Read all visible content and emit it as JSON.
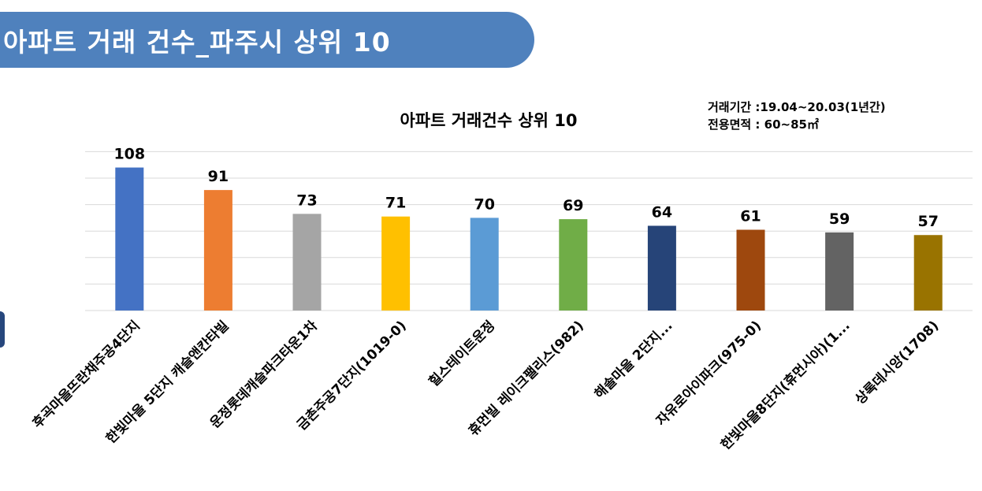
{
  "header": {
    "title": "아파트 거래 건수_파주시 상위 10"
  },
  "notes": {
    "period": "거래기간 :19.04~20.03(1년간)",
    "area": "전용면적 : 60~85㎡"
  },
  "colors": {
    "banner": "#4f81bd",
    "gridline": "#d9d9d9"
  },
  "chart_data": {
    "type": "bar",
    "title": "아파트 거래건수 상위 10",
    "xlabel": "",
    "ylabel": "",
    "ylim": [
      0,
      120
    ],
    "grid": true,
    "legend": "none",
    "categories": [
      "후곡마을뜨란채주공4단지",
      "한빛마을 5단지 캐슬앤칸타빌",
      "운정롯데캐슬파크타운1차",
      "금촌주공7단지(1019-0)",
      "힐스테이트운정",
      "휴먼빌 레이크팰리스(982)",
      "해솔마을 2단지...",
      "자유로아이파크(975-0)",
      "한빛마을8단지(휴먼시아)(1...",
      "상록데시앙(1708)"
    ],
    "values": [
      108,
      91,
      73,
      71,
      70,
      69,
      64,
      61,
      59,
      57
    ],
    "bar_colors": [
      "#4472c4",
      "#ed7d31",
      "#a5a5a5",
      "#ffc000",
      "#5b9bd5",
      "#70ad47",
      "#264478",
      "#9e480e",
      "#636363",
      "#997300"
    ]
  }
}
